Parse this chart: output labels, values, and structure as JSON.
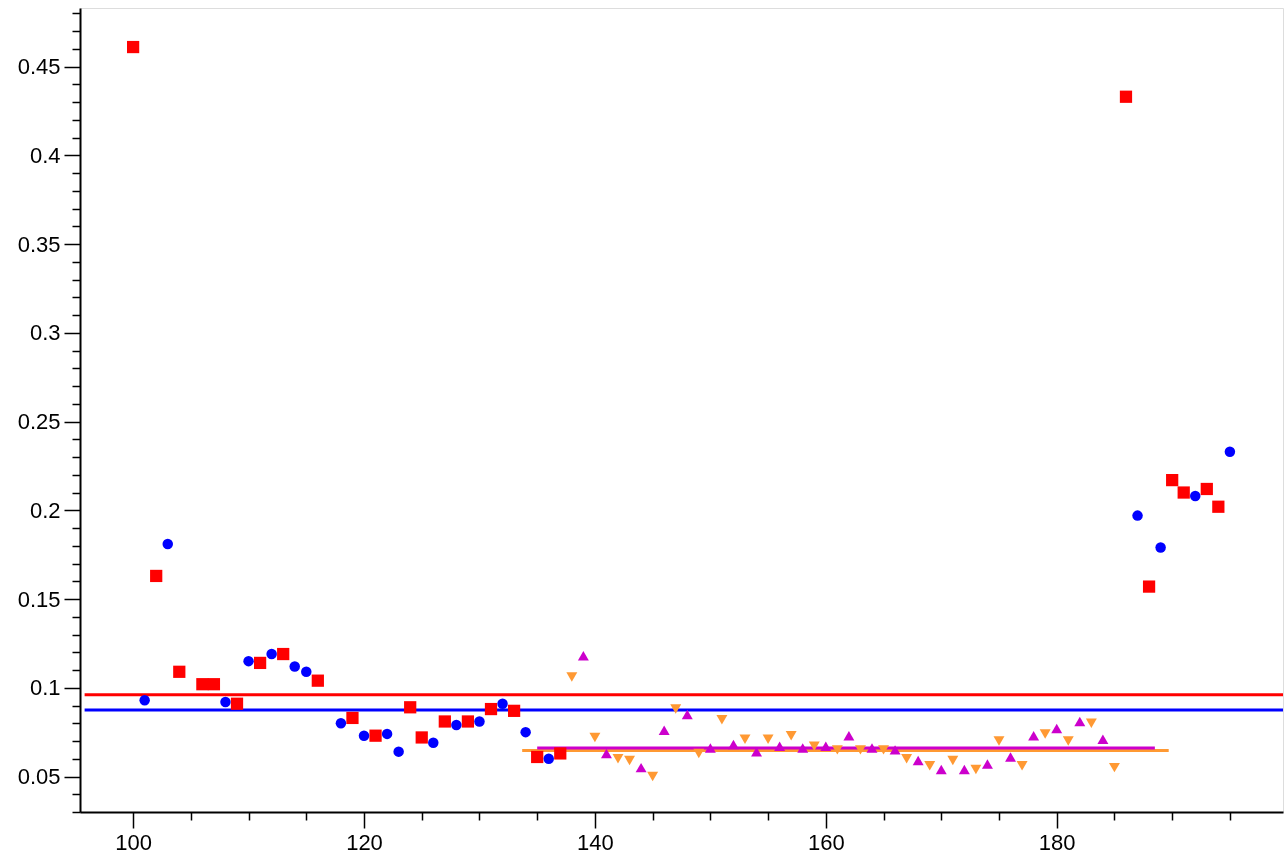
{
  "chart_data": {
    "type": "scatter",
    "xlim": [
      95.4,
      199.6
    ],
    "ylim": [
      0.03,
      0.483
    ],
    "xticks": [
      100,
      {
        "value": 105,
        "label": null
      },
      {
        "value": 110,
        "label": null
      },
      {
        "value": 115,
        "label": null
      },
      120,
      {
        "value": 125,
        "label": null
      },
      {
        "value": 130,
        "label": null
      },
      {
        "value": 135,
        "label": null
      },
      140,
      {
        "value": 145,
        "label": null
      },
      {
        "value": 150,
        "label": null
      },
      {
        "value": 155,
        "label": null
      },
      160,
      {
        "value": 165,
        "label": null
      },
      {
        "value": 170,
        "label": null
      },
      {
        "value": 175,
        "label": null
      },
      180,
      {
        "value": 185,
        "label": null
      },
      {
        "value": 190,
        "label": null
      },
      {
        "value": 195,
        "label": null
      }
    ],
    "yticks": [
      {
        "value": 0.03,
        "label": null
      },
      {
        "value": 0.04,
        "label": null
      },
      0.05,
      {
        "value": 0.06,
        "label": null
      },
      {
        "value": 0.07,
        "label": null
      },
      {
        "value": 0.08,
        "label": null
      },
      {
        "value": 0.09,
        "label": null
      },
      0.1,
      {
        "value": 0.11,
        "label": null
      },
      {
        "value": 0.12,
        "label": null
      },
      {
        "value": 0.13,
        "label": null
      },
      {
        "value": 0.14,
        "label": null
      },
      0.15,
      {
        "value": 0.16,
        "label": null
      },
      {
        "value": 0.17,
        "label": null
      },
      {
        "value": 0.18,
        "label": null
      },
      {
        "value": 0.19,
        "label": null
      },
      0.2,
      {
        "value": 0.21,
        "label": null
      },
      {
        "value": 0.22,
        "label": null
      },
      {
        "value": 0.23,
        "label": null
      },
      {
        "value": 0.24,
        "label": null
      },
      0.25,
      {
        "value": 0.26,
        "label": null
      },
      {
        "value": 0.27,
        "label": null
      },
      {
        "value": 0.28,
        "label": null
      },
      {
        "value": 0.29,
        "label": null
      },
      0.3,
      {
        "value": 0.31,
        "label": null
      },
      {
        "value": 0.32,
        "label": null
      },
      {
        "value": 0.33,
        "label": null
      },
      {
        "value": 0.34,
        "label": null
      },
      0.35,
      {
        "value": 0.36,
        "label": null
      },
      {
        "value": 0.37,
        "label": null
      },
      {
        "value": 0.38,
        "label": null
      },
      {
        "value": 0.39,
        "label": null
      },
      0.4,
      {
        "value": 0.41,
        "label": null
      },
      {
        "value": 0.42,
        "label": null
      },
      {
        "value": 0.43,
        "label": null
      },
      {
        "value": 0.44,
        "label": null
      },
      0.45,
      {
        "value": 0.46,
        "label": null
      },
      {
        "value": 0.47,
        "label": null
      },
      {
        "value": 0.48,
        "label": null
      }
    ],
    "grid": false,
    "series": [
      {
        "type": "line",
        "color": "#ff0000",
        "x": [
          95.8,
          199.6
        ],
        "values": [
          0.096,
          0.096
        ]
      },
      {
        "type": "line",
        "color": "#0000ff",
        "x": [
          95.8,
          199.6
        ],
        "values": [
          0.0875,
          0.0875
        ]
      },
      {
        "type": "line",
        "color": "#ff9933",
        "x": [
          133.7,
          189.7
        ],
        "values": [
          0.0646,
          0.0646
        ]
      },
      {
        "type": "line",
        "color": "#cc00cc",
        "x": [
          135.0,
          188.5
        ],
        "values": [
          0.0661,
          0.0661
        ]
      },
      {
        "type": "scatter",
        "marker": "square",
        "color": "#ff0000",
        "x": [
          100,
          102,
          104,
          106,
          107,
          109,
          111,
          113,
          116,
          119,
          121,
          124,
          125,
          127,
          129,
          131,
          133,
          135,
          137,
          186,
          188,
          190,
          191,
          193,
          194
        ],
        "values": [
          0.461,
          0.163,
          0.109,
          0.102,
          0.102,
          0.091,
          0.114,
          0.119,
          0.104,
          0.083,
          0.073,
          0.089,
          0.072,
          0.081,
          0.081,
          0.088,
          0.087,
          0.061,
          0.063,
          0.433,
          0.157,
          0.217,
          0.21,
          0.212,
          0.202
        ]
      },
      {
        "type": "scatter",
        "marker": "circle",
        "color": "#0000ff",
        "x": [
          101,
          103,
          108,
          110,
          112,
          114,
          115,
          118,
          120,
          122,
          123,
          126,
          128,
          130,
          132,
          134,
          136,
          187,
          189,
          192,
          195
        ],
        "values": [
          0.093,
          0.181,
          0.092,
          0.115,
          0.119,
          0.112,
          0.109,
          0.08,
          0.073,
          0.074,
          0.064,
          0.069,
          0.079,
          0.081,
          0.091,
          0.075,
          0.06,
          0.197,
          0.179,
          0.208,
          0.233
        ]
      },
      {
        "type": "scatter",
        "marker": "triangle",
        "color": "#cc00cc",
        "x": [
          139,
          141,
          144,
          146,
          148,
          150,
          152,
          154,
          156,
          158,
          160,
          162,
          164,
          166,
          168,
          170,
          172,
          174,
          176,
          178,
          180,
          182,
          184
        ],
        "values": [
          0.118,
          0.063,
          0.055,
          0.076,
          0.085,
          0.066,
          0.068,
          0.064,
          0.067,
          0.066,
          0.067,
          0.073,
          0.066,
          0.065,
          0.059,
          0.054,
          0.054,
          0.057,
          0.061,
          0.073,
          0.077,
          0.081,
          0.071
        ]
      },
      {
        "type": "scatter",
        "marker": "triangle-down",
        "color": "#ff9933",
        "x": [
          138,
          140,
          142,
          143,
          145,
          147,
          149,
          151,
          153,
          155,
          157,
          159,
          161,
          163,
          165,
          167,
          169,
          171,
          173,
          175,
          177,
          179,
          181,
          183,
          185
        ],
        "values": [
          0.106,
          0.072,
          0.06,
          0.059,
          0.05,
          0.088,
          0.063,
          0.082,
          0.071,
          0.071,
          0.073,
          0.067,
          0.065,
          0.065,
          0.065,
          0.06,
          0.056,
          0.059,
          0.054,
          0.07,
          0.056,
          0.074,
          0.07,
          0.08,
          0.055
        ]
      }
    ]
  }
}
